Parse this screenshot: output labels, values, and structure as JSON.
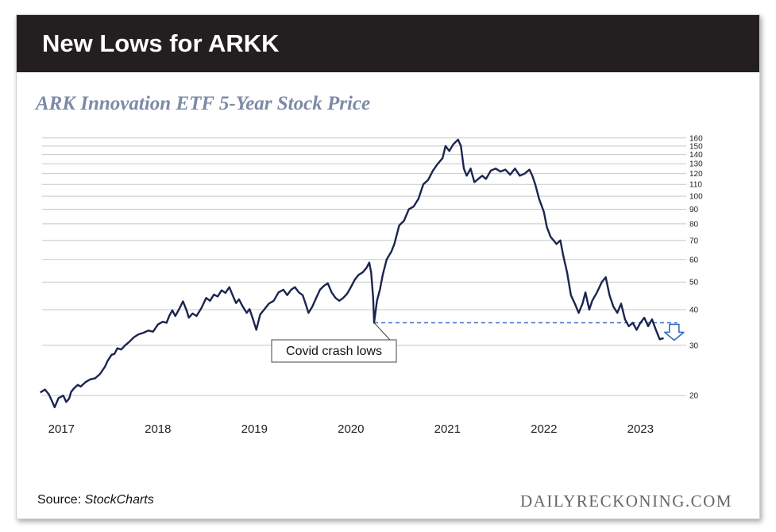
{
  "header": {
    "title": "New Lows for ARKK"
  },
  "chart_data": {
    "type": "line",
    "title": "ARK Innovation ETF 5-Year Stock Price",
    "scale": "log",
    "ylim": [
      17.5,
      165
    ],
    "xlim": [
      2016.8,
      2023.45
    ],
    "y_ticks": [
      20,
      30,
      40,
      50,
      60,
      70,
      80,
      90,
      100,
      110,
      120,
      130,
      140,
      150,
      160
    ],
    "x_ticks": [
      {
        "label": "2017",
        "value": 2017.0
      },
      {
        "label": "2018",
        "value": 2018.0
      },
      {
        "label": "2019",
        "value": 2019.0
      },
      {
        "label": "2020",
        "value": 2020.0
      },
      {
        "label": "2021",
        "value": 2021.0
      },
      {
        "label": "2022",
        "value": 2022.0
      },
      {
        "label": "2023",
        "value": 2023.0
      }
    ],
    "series": [
      {
        "name": "ARKK",
        "color": "#1b2550",
        "points": [
          [
            2016.78,
            20.5
          ],
          [
            2016.83,
            21.0
          ],
          [
            2016.87,
            20.2
          ],
          [
            2016.9,
            19.2
          ],
          [
            2016.93,
            18.2
          ],
          [
            2016.97,
            19.6
          ],
          [
            2017.02,
            20.0
          ],
          [
            2017.05,
            19.0
          ],
          [
            2017.08,
            19.5
          ],
          [
            2017.1,
            20.6
          ],
          [
            2017.13,
            21.2
          ],
          [
            2017.17,
            21.8
          ],
          [
            2017.2,
            21.5
          ],
          [
            2017.25,
            22.3
          ],
          [
            2017.3,
            22.8
          ],
          [
            2017.35,
            23.0
          ],
          [
            2017.4,
            23.8
          ],
          [
            2017.45,
            25.2
          ],
          [
            2017.48,
            26.5
          ],
          [
            2017.52,
            27.8
          ],
          [
            2017.55,
            28.0
          ],
          [
            2017.58,
            29.3
          ],
          [
            2017.62,
            29.0
          ],
          [
            2017.66,
            30.0
          ],
          [
            2017.7,
            30.8
          ],
          [
            2017.75,
            32.0
          ],
          [
            2017.8,
            32.8
          ],
          [
            2017.85,
            33.2
          ],
          [
            2017.9,
            33.8
          ],
          [
            2017.95,
            33.5
          ],
          [
            2018.0,
            35.5
          ],
          [
            2018.05,
            36.3
          ],
          [
            2018.09,
            36.0
          ],
          [
            2018.12,
            38.2
          ],
          [
            2018.15,
            39.8
          ],
          [
            2018.18,
            38.0
          ],
          [
            2018.22,
            40.2
          ],
          [
            2018.26,
            42.8
          ],
          [
            2018.3,
            39.5
          ],
          [
            2018.32,
            37.5
          ],
          [
            2018.36,
            38.8
          ],
          [
            2018.4,
            38.0
          ],
          [
            2018.45,
            40.5
          ],
          [
            2018.5,
            44.0
          ],
          [
            2018.54,
            43.0
          ],
          [
            2018.58,
            45.2
          ],
          [
            2018.62,
            44.5
          ],
          [
            2018.66,
            46.8
          ],
          [
            2018.7,
            45.8
          ],
          [
            2018.74,
            48.0
          ],
          [
            2018.78,
            44.5
          ],
          [
            2018.81,
            42.2
          ],
          [
            2018.84,
            43.5
          ],
          [
            2018.88,
            41.0
          ],
          [
            2018.92,
            39.0
          ],
          [
            2018.95,
            40.2
          ],
          [
            2018.98,
            37.5
          ],
          [
            2019.02,
            34.0
          ],
          [
            2019.06,
            38.5
          ],
          [
            2019.1,
            40.0
          ],
          [
            2019.15,
            42.0
          ],
          [
            2019.2,
            43.0
          ],
          [
            2019.25,
            46.0
          ],
          [
            2019.3,
            47.0
          ],
          [
            2019.34,
            45.0
          ],
          [
            2019.38,
            47.0
          ],
          [
            2019.42,
            48.0
          ],
          [
            2019.46,
            46.0
          ],
          [
            2019.5,
            45.0
          ],
          [
            2019.53,
            42.0
          ],
          [
            2019.56,
            39.0
          ],
          [
            2019.6,
            41.0
          ],
          [
            2019.64,
            44.0
          ],
          [
            2019.68,
            47.0
          ],
          [
            2019.72,
            48.5
          ],
          [
            2019.76,
            49.5
          ],
          [
            2019.8,
            46.0
          ],
          [
            2019.84,
            44.0
          ],
          [
            2019.88,
            43.0
          ],
          [
            2019.92,
            44.0
          ],
          [
            2019.96,
            45.5
          ],
          [
            2020.0,
            48.0
          ],
          [
            2020.04,
            51.0
          ],
          [
            2020.08,
            53.0
          ],
          [
            2020.12,
            54.0
          ],
          [
            2020.16,
            56.0
          ],
          [
            2020.19,
            58.5
          ],
          [
            2020.21,
            54.0
          ],
          [
            2020.23,
            44.0
          ],
          [
            2020.24,
            36.0
          ],
          [
            2020.27,
            43.0
          ],
          [
            2020.3,
            47.0
          ],
          [
            2020.33,
            53.0
          ],
          [
            2020.37,
            60.0
          ],
          [
            2020.42,
            64.0
          ],
          [
            2020.45,
            68.0
          ],
          [
            2020.5,
            79.0
          ],
          [
            2020.55,
            82.0
          ],
          [
            2020.6,
            90.0
          ],
          [
            2020.65,
            92.0
          ],
          [
            2020.7,
            98.0
          ],
          [
            2020.75,
            110.0
          ],
          [
            2020.8,
            114.0
          ],
          [
            2020.85,
            123.0
          ],
          [
            2020.9,
            130.0
          ],
          [
            2020.95,
            136.0
          ],
          [
            2020.98,
            150.0
          ],
          [
            2021.02,
            144.0
          ],
          [
            2021.06,
            152.0
          ],
          [
            2021.11,
            158.0
          ],
          [
            2021.14,
            150.0
          ],
          [
            2021.17,
            125.0
          ],
          [
            2021.2,
            118.0
          ],
          [
            2021.24,
            125.0
          ],
          [
            2021.28,
            112.0
          ],
          [
            2021.32,
            115.0
          ],
          [
            2021.36,
            118.0
          ],
          [
            2021.4,
            115.0
          ],
          [
            2021.45,
            123.0
          ],
          [
            2021.5,
            125.0
          ],
          [
            2021.55,
            122.0
          ],
          [
            2021.6,
            124.0
          ],
          [
            2021.65,
            119.0
          ],
          [
            2021.7,
            125.0
          ],
          [
            2021.75,
            118.0
          ],
          [
            2021.8,
            120.0
          ],
          [
            2021.85,
            124.0
          ],
          [
            2021.88,
            118.0
          ],
          [
            2021.91,
            110.0
          ],
          [
            2021.95,
            98.0
          ],
          [
            2022.0,
            88.0
          ],
          [
            2022.03,
            78.0
          ],
          [
            2022.07,
            72.0
          ],
          [
            2022.1,
            70.0
          ],
          [
            2022.13,
            68.0
          ],
          [
            2022.17,
            70.0
          ],
          [
            2022.2,
            62.0
          ],
          [
            2022.24,
            54.0
          ],
          [
            2022.28,
            45.0
          ],
          [
            2022.32,
            42.0
          ],
          [
            2022.36,
            39.0
          ],
          [
            2022.4,
            42.0
          ],
          [
            2022.43,
            46.0
          ],
          [
            2022.47,
            40.0
          ],
          [
            2022.5,
            43.0
          ],
          [
            2022.55,
            46.0
          ],
          [
            2022.6,
            50.0
          ],
          [
            2022.64,
            52.0
          ],
          [
            2022.68,
            45.0
          ],
          [
            2022.72,
            41.0
          ],
          [
            2022.76,
            39.0
          ],
          [
            2022.8,
            42.0
          ],
          [
            2022.84,
            37.0
          ],
          [
            2022.88,
            35.0
          ],
          [
            2022.92,
            36.0
          ],
          [
            2022.96,
            34.0
          ],
          [
            2023.0,
            36.0
          ],
          [
            2023.04,
            37.5
          ],
          [
            2023.08,
            35.0
          ],
          [
            2023.12,
            37.0
          ],
          [
            2023.16,
            34.0
          ],
          [
            2023.2,
            31.5
          ],
          [
            2023.24,
            31.8
          ]
        ]
      }
    ],
    "reference_line": {
      "y": 36.0,
      "x_start": 2020.24,
      "x_end": 2023.38,
      "style": "dashed",
      "color": "#3f6fc4"
    },
    "annotations": [
      {
        "text": "Covid crash lows",
        "x": 2020.24,
        "y": 36.0
      },
      {
        "type": "down-arrow",
        "x": 2023.35,
        "color": "#2f6fba"
      }
    ]
  },
  "footer": {
    "source_prefix": "Source: ",
    "source_name": "StockCharts",
    "brand": "DAILYRECKONING.COM"
  }
}
